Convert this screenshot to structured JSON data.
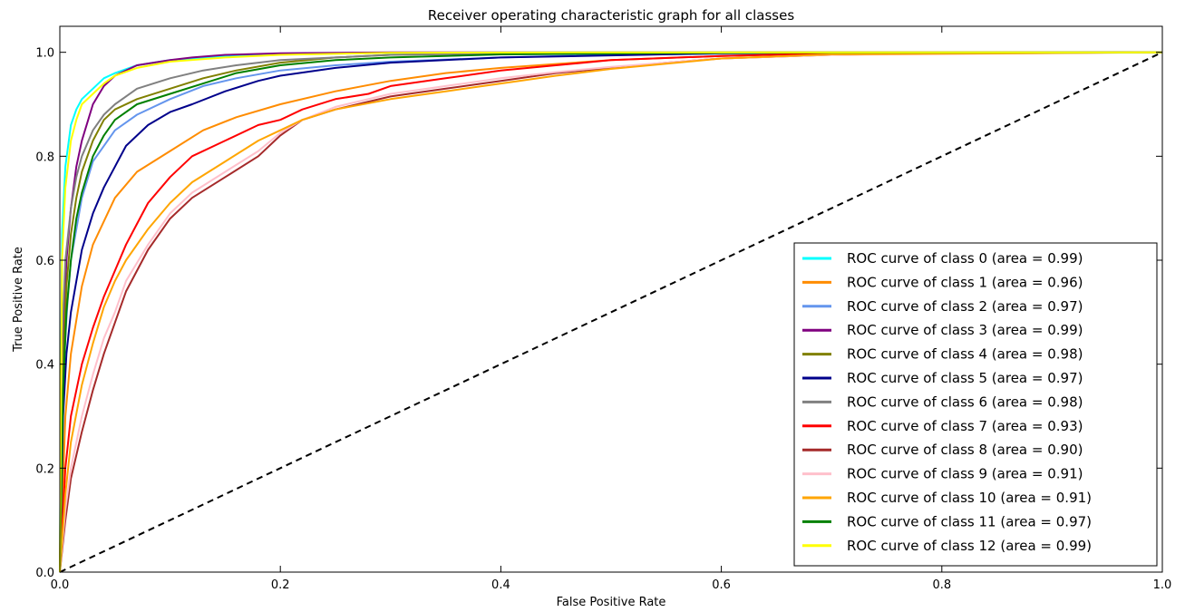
{
  "chart_data": {
    "type": "line",
    "title": "Receiver operating characteristic graph for all classes",
    "xlabel": "False Positive Rate",
    "ylabel": "True Positive Rate",
    "xlim": [
      0.0,
      1.0
    ],
    "ylim": [
      0.0,
      1.05
    ],
    "xticks": [
      "0.0",
      "0.2",
      "0.4",
      "0.6",
      "0.8",
      "1.0"
    ],
    "yticks": [
      "0.0",
      "0.2",
      "0.4",
      "0.6",
      "0.8",
      "1.0"
    ],
    "grid": false,
    "legend_position": "lower-right",
    "reference_line": {
      "style": "dashed",
      "color": "#000000",
      "x": [
        0.0,
        1.0
      ],
      "y": [
        0.0,
        1.0
      ]
    },
    "series": [
      {
        "name": "ROC curve of class 0 (area = 0.99)",
        "color": "#00ffff",
        "x": [
          0,
          0.002,
          0.005,
          0.01,
          0.015,
          0.02,
          0.03,
          0.04,
          0.05,
          0.07,
          0.1,
          0.15,
          0.2,
          0.3,
          0.5,
          1.0
        ],
        "y": [
          0,
          0.65,
          0.78,
          0.86,
          0.89,
          0.91,
          0.93,
          0.95,
          0.96,
          0.975,
          0.985,
          0.993,
          0.997,
          0.999,
          1.0,
          1.0
        ]
      },
      {
        "name": "ROC curve of class 1 (area = 0.96)",
        "color": "#ff8c00",
        "x": [
          0,
          0.005,
          0.01,
          0.02,
          0.03,
          0.05,
          0.07,
          0.1,
          0.13,
          0.16,
          0.2,
          0.25,
          0.3,
          0.35,
          0.4,
          0.5,
          0.6,
          0.7,
          1.0
        ],
        "y": [
          0,
          0.3,
          0.42,
          0.55,
          0.63,
          0.72,
          0.77,
          0.81,
          0.85,
          0.875,
          0.9,
          0.925,
          0.945,
          0.96,
          0.97,
          0.985,
          0.993,
          0.998,
          1.0
        ]
      },
      {
        "name": "ROC curve of class 2 (area = 0.97)",
        "color": "#6495ed",
        "x": [
          0,
          0.003,
          0.007,
          0.01,
          0.02,
          0.03,
          0.04,
          0.05,
          0.07,
          0.1,
          0.13,
          0.16,
          0.2,
          0.25,
          0.3,
          0.4,
          0.5,
          0.7,
          1.0
        ],
        "y": [
          0,
          0.38,
          0.52,
          0.6,
          0.72,
          0.79,
          0.82,
          0.85,
          0.88,
          0.91,
          0.935,
          0.95,
          0.965,
          0.975,
          0.982,
          0.99,
          0.995,
          0.999,
          1.0
        ]
      },
      {
        "name": "ROC curve of class 3 (area = 0.99)",
        "color": "#800080",
        "x": [
          0,
          0.003,
          0.006,
          0.01,
          0.015,
          0.02,
          0.03,
          0.04,
          0.05,
          0.07,
          0.1,
          0.12,
          0.15,
          0.2,
          0.3,
          1.0
        ],
        "y": [
          0,
          0.45,
          0.6,
          0.7,
          0.78,
          0.83,
          0.9,
          0.935,
          0.955,
          0.975,
          0.985,
          0.99,
          0.995,
          0.998,
          1.0,
          1.0
        ]
      },
      {
        "name": "ROC curve of class 4 (area = 0.98)",
        "color": "#808000",
        "x": [
          0,
          0.003,
          0.006,
          0.01,
          0.015,
          0.02,
          0.03,
          0.04,
          0.05,
          0.07,
          0.1,
          0.13,
          0.16,
          0.2,
          0.25,
          0.3,
          0.4,
          0.6,
          1.0
        ],
        "y": [
          0,
          0.4,
          0.55,
          0.65,
          0.72,
          0.77,
          0.83,
          0.87,
          0.89,
          0.91,
          0.93,
          0.95,
          0.965,
          0.98,
          0.99,
          0.995,
          0.998,
          1.0,
          1.0
        ]
      },
      {
        "name": "ROC curve of class 5 (area = 0.97)",
        "color": "#00008b",
        "x": [
          0,
          0.003,
          0.006,
          0.01,
          0.02,
          0.03,
          0.04,
          0.05,
          0.06,
          0.08,
          0.1,
          0.12,
          0.15,
          0.18,
          0.2,
          0.25,
          0.3,
          0.4,
          0.6,
          1.0
        ],
        "y": [
          0,
          0.3,
          0.42,
          0.5,
          0.62,
          0.69,
          0.74,
          0.78,
          0.82,
          0.86,
          0.885,
          0.9,
          0.925,
          0.945,
          0.955,
          0.97,
          0.98,
          0.99,
          0.998,
          1.0
        ]
      },
      {
        "name": "ROC curve of class 6 (area = 0.98)",
        "color": "#808080",
        "x": [
          0,
          0.002,
          0.005,
          0.01,
          0.015,
          0.02,
          0.03,
          0.04,
          0.05,
          0.07,
          0.1,
          0.13,
          0.16,
          0.2,
          0.25,
          0.3,
          0.4,
          1.0
        ],
        "y": [
          0,
          0.45,
          0.6,
          0.7,
          0.76,
          0.8,
          0.85,
          0.88,
          0.9,
          0.93,
          0.95,
          0.965,
          0.975,
          0.985,
          0.99,
          0.995,
          0.998,
          1.0
        ]
      },
      {
        "name": "ROC curve of class 7 (area = 0.93)",
        "color": "#ff0000",
        "x": [
          0,
          0.005,
          0.01,
          0.02,
          0.03,
          0.04,
          0.05,
          0.06,
          0.07,
          0.08,
          0.1,
          0.12,
          0.15,
          0.18,
          0.2,
          0.22,
          0.25,
          0.28,
          0.3,
          0.35,
          0.4,
          0.45,
          0.5,
          0.6,
          0.7,
          1.0
        ],
        "y": [
          0,
          0.2,
          0.3,
          0.4,
          0.47,
          0.53,
          0.58,
          0.63,
          0.67,
          0.71,
          0.76,
          0.8,
          0.83,
          0.86,
          0.87,
          0.89,
          0.91,
          0.92,
          0.935,
          0.95,
          0.965,
          0.975,
          0.985,
          0.993,
          0.998,
          1.0
        ]
      },
      {
        "name": "ROC curve of class 8 (area = 0.90)",
        "color": "#a52a2a",
        "x": [
          0,
          0.005,
          0.01,
          0.02,
          0.03,
          0.04,
          0.05,
          0.06,
          0.08,
          0.1,
          0.12,
          0.15,
          0.18,
          0.2,
          0.22,
          0.25,
          0.3,
          0.35,
          0.4,
          0.45,
          0.5,
          0.55,
          0.6,
          0.7,
          0.8,
          1.0
        ],
        "y": [
          0,
          0.1,
          0.18,
          0.27,
          0.35,
          0.42,
          0.48,
          0.54,
          0.62,
          0.68,
          0.72,
          0.76,
          0.8,
          0.84,
          0.87,
          0.89,
          0.915,
          0.93,
          0.945,
          0.96,
          0.97,
          0.98,
          0.988,
          0.995,
          0.998,
          1.0
        ]
      },
      {
        "name": "ROC curve of class 9 (area = 0.91)",
        "color": "#ffc0cb",
        "x": [
          0,
          0.005,
          0.01,
          0.02,
          0.03,
          0.04,
          0.05,
          0.06,
          0.08,
          0.1,
          0.12,
          0.15,
          0.18,
          0.2,
          0.22,
          0.25,
          0.3,
          0.35,
          0.4,
          0.45,
          0.5,
          0.55,
          0.6,
          0.7,
          1.0
        ],
        "y": [
          0,
          0.12,
          0.2,
          0.3,
          0.38,
          0.45,
          0.5,
          0.56,
          0.63,
          0.69,
          0.73,
          0.77,
          0.81,
          0.845,
          0.87,
          0.895,
          0.92,
          0.935,
          0.95,
          0.962,
          0.972,
          0.98,
          0.988,
          0.995,
          1.0
        ]
      },
      {
        "name": "ROC curve of class 10 (area = 0.91)",
        "color": "#ffa500",
        "x": [
          0,
          0.005,
          0.01,
          0.02,
          0.03,
          0.04,
          0.05,
          0.06,
          0.08,
          0.1,
          0.12,
          0.15,
          0.18,
          0.2,
          0.22,
          0.25,
          0.3,
          0.35,
          0.4,
          0.45,
          0.5,
          0.55,
          0.6,
          0.7,
          1.0
        ],
        "y": [
          0,
          0.15,
          0.25,
          0.36,
          0.44,
          0.51,
          0.56,
          0.6,
          0.66,
          0.71,
          0.75,
          0.79,
          0.83,
          0.85,
          0.87,
          0.89,
          0.91,
          0.925,
          0.94,
          0.955,
          0.968,
          0.978,
          0.988,
          0.996,
          1.0
        ]
      },
      {
        "name": "ROC curve of class 11 (area = 0.97)",
        "color": "#008000",
        "x": [
          0,
          0.003,
          0.006,
          0.01,
          0.015,
          0.02,
          0.03,
          0.04,
          0.05,
          0.07,
          0.1,
          0.13,
          0.16,
          0.2,
          0.25,
          0.3,
          0.4,
          0.6,
          1.0
        ],
        "y": [
          0,
          0.35,
          0.5,
          0.6,
          0.68,
          0.73,
          0.8,
          0.84,
          0.87,
          0.9,
          0.92,
          0.94,
          0.96,
          0.975,
          0.985,
          0.99,
          0.996,
          0.999,
          1.0
        ]
      },
      {
        "name": "ROC curve of class 12 (area = 0.99)",
        "color": "#ffff00",
        "x": [
          0,
          0.002,
          0.005,
          0.01,
          0.015,
          0.02,
          0.03,
          0.04,
          0.05,
          0.07,
          0.1,
          0.15,
          0.2,
          0.3,
          0.5,
          1.0
        ],
        "y": [
          0,
          0.6,
          0.74,
          0.83,
          0.87,
          0.9,
          0.92,
          0.94,
          0.955,
          0.97,
          0.982,
          0.99,
          0.995,
          0.999,
          1.0,
          1.0
        ]
      }
    ]
  }
}
